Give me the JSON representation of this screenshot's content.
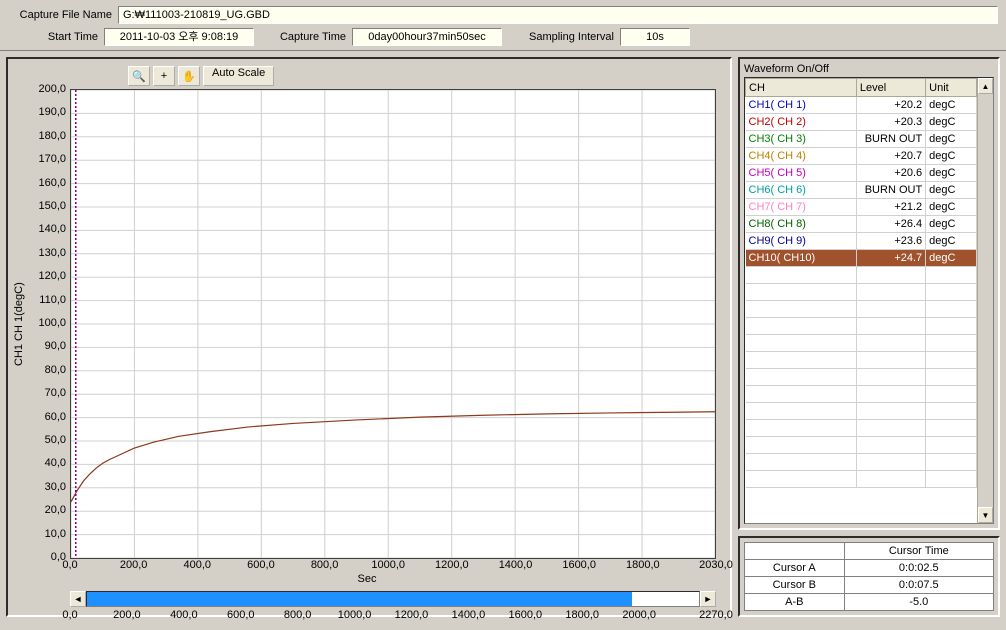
{
  "header": {
    "file_label": "Capture File Name",
    "file_value": "G:₩111003-210819_UG.GBD",
    "start_label": "Start Time",
    "start_value": "2011-10-03 오후 9:08:19",
    "capture_label": "Capture Time",
    "capture_value": "0day00hour37min50sec",
    "interval_label": "Sampling Interval",
    "interval_value": "10s"
  },
  "toolbar": {
    "zoom_icon": "🔍",
    "crosshair_icon": "+",
    "hand_icon": "✋",
    "autoscale_label": "Auto Scale"
  },
  "chart": {
    "type": "line",
    "yaxis_title": "CH1  CH 1(degC)",
    "xaxis_title": "Sec",
    "ylim": [
      0,
      200
    ],
    "ytick_step": 10,
    "yticks": [
      "0,0",
      "10,0",
      "20,0",
      "30,0",
      "40,0",
      "50,0",
      "60,0",
      "70,0",
      "80,0",
      "90,0",
      "100,0",
      "110,0",
      "120,0",
      "130,0",
      "140,0",
      "150,0",
      "160,0",
      "170,0",
      "180,0",
      "190,0",
      "200,0"
    ],
    "xlim": [
      0,
      2030
    ],
    "xtick_step": 200,
    "xticks": [
      "0,0",
      "200,0",
      "400,0",
      "600,0",
      "800,0",
      "1000,0",
      "1200,0",
      "1400,0",
      "1600,0",
      "1800,0",
      "2030,0"
    ],
    "xtick_vals": [
      0,
      200,
      400,
      600,
      800,
      1000,
      1200,
      1400,
      1600,
      1800,
      2030
    ],
    "grid_color": "#d0d0d0",
    "background_color": "#ffffff",
    "line_color": "#8b3a1a",
    "line_width": 1.2,
    "series": {
      "x": [
        0,
        20,
        40,
        60,
        80,
        100,
        120,
        160,
        200,
        260,
        340,
        440,
        560,
        700,
        900,
        1100,
        1300,
        1500,
        1700,
        1900,
        2030
      ],
      "y": [
        24,
        29,
        33,
        36,
        38.5,
        40.5,
        42,
        44.5,
        47,
        49.5,
        52,
        54,
        56,
        57.5,
        59,
        60.2,
        61,
        61.6,
        62,
        62.3,
        62.5
      ]
    },
    "marker_x": 15,
    "marker_color": "#8b008b"
  },
  "overview": {
    "xlim": [
      0,
      2270
    ],
    "xticks": [
      "0,0",
      "200,0",
      "400,0",
      "600,0",
      "800,0",
      "1000,0",
      "1200,0",
      "1400,0",
      "1600,0",
      "1800,0",
      "2000,0",
      "2270,0"
    ],
    "xtick_vals": [
      0,
      200,
      400,
      600,
      800,
      1000,
      1200,
      1400,
      1600,
      1800,
      2000,
      2270
    ],
    "thumb_color": "#1e90ff",
    "thumb_pct": 89
  },
  "waveform": {
    "title": "Waveform On/Off",
    "col_ch": "CH",
    "col_level": "Level",
    "col_unit": "Unit",
    "rows": [
      {
        "name": "CH1( CH 1)",
        "level": "+20.2",
        "unit": "degC",
        "color": "#0000c0",
        "selected": false
      },
      {
        "name": "CH2( CH 2)",
        "level": "+20.3",
        "unit": "degC",
        "color": "#c00000",
        "selected": false
      },
      {
        "name": "CH3( CH 3)",
        "level": "BURN OUT",
        "unit": "degC",
        "color": "#008000",
        "selected": false
      },
      {
        "name": "CH4( CH 4)",
        "level": "+20.7",
        "unit": "degC",
        "color": "#c08000",
        "selected": false
      },
      {
        "name": "CH5( CH 5)",
        "level": "+20.6",
        "unit": "degC",
        "color": "#c000c0",
        "selected": false
      },
      {
        "name": "CH6( CH 6)",
        "level": "BURN OUT",
        "unit": "degC",
        "color": "#00a0a0",
        "selected": false
      },
      {
        "name": "CH7( CH 7)",
        "level": "+21.2",
        "unit": "degC",
        "color": "#ff80c0",
        "selected": false
      },
      {
        "name": "CH8( CH 8)",
        "level": "+26.4",
        "unit": "degC",
        "color": "#006000",
        "selected": false
      },
      {
        "name": "CH9( CH 9)",
        "level": "+23.6",
        "unit": "degC",
        "color": "#0000a0",
        "selected": false
      },
      {
        "name": "CH10( CH10)",
        "level": "+24.7",
        "unit": "degC",
        "color": "#ffffff",
        "selected": true
      }
    ],
    "empty_rows": 13
  },
  "cursor": {
    "title": "Cursor Time",
    "a_label": "Cursor A",
    "a_value": "0:0:02.5",
    "b_label": "Cursor B",
    "b_value": "0:0:07.5",
    "ab_label": "A-B",
    "ab_value": "-5.0"
  }
}
